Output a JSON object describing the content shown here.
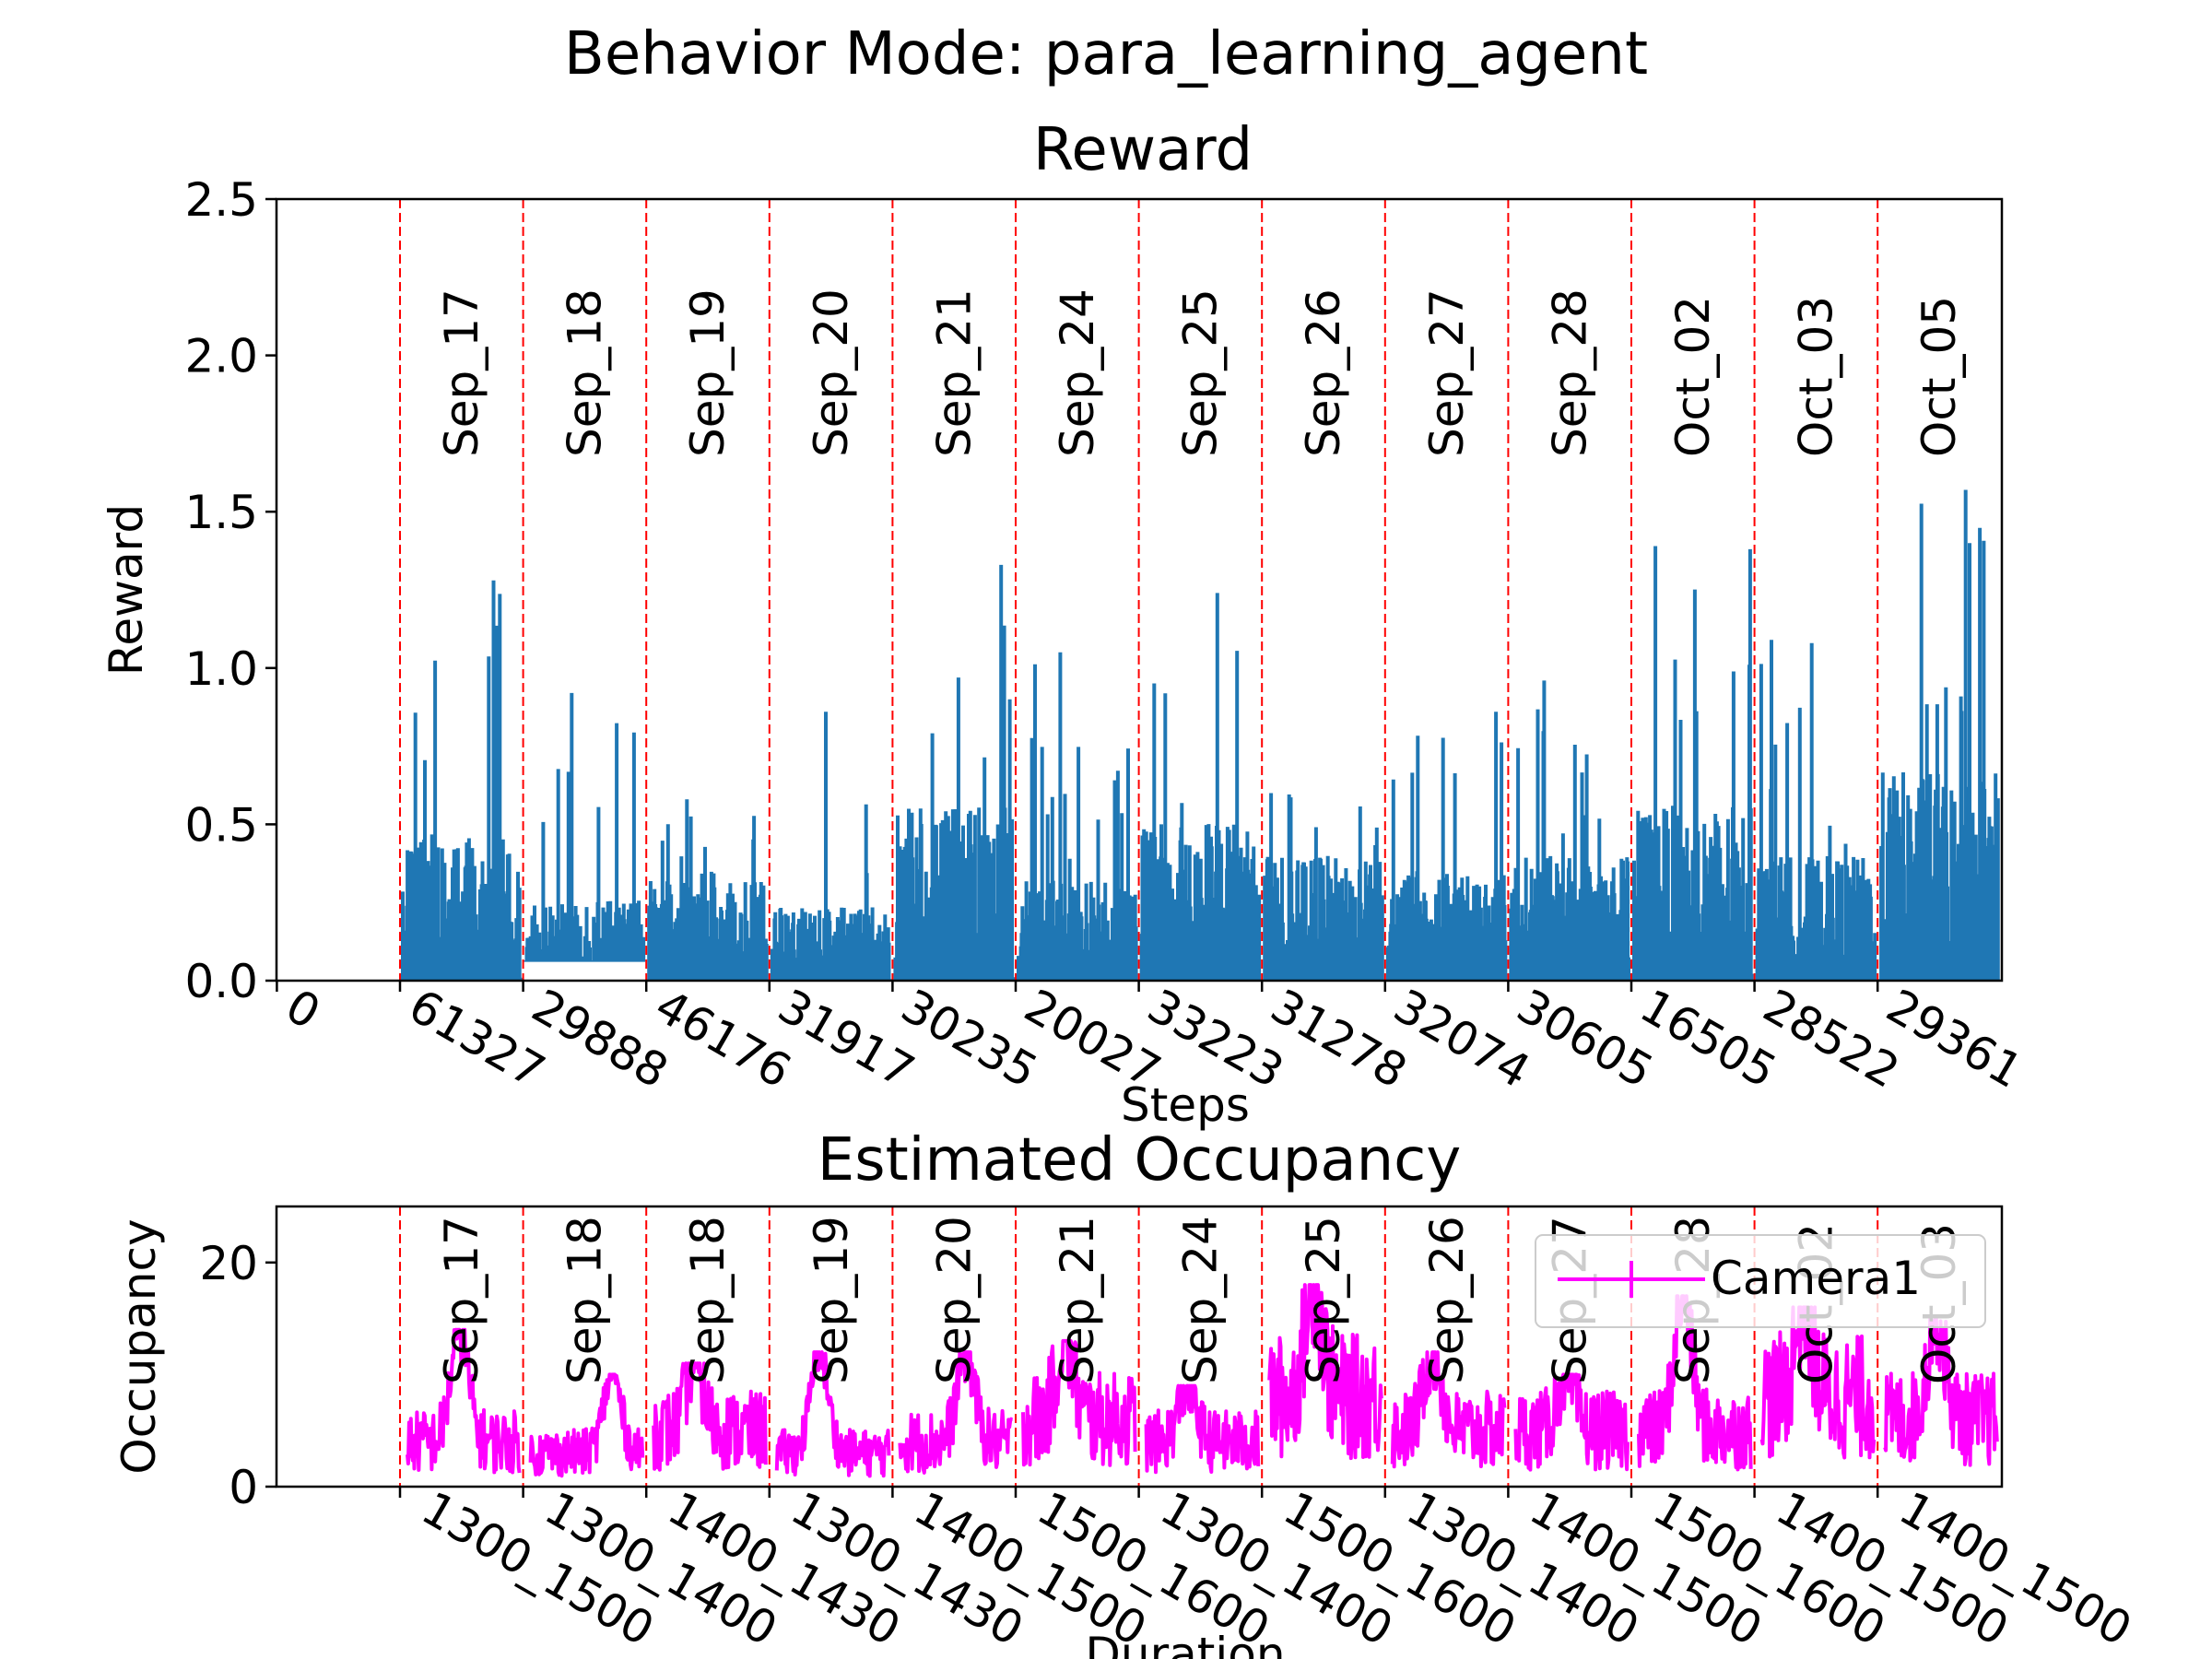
{
  "figure_title": "Behavior Mode: para_learning_agent",
  "colors": {
    "reward_series": "#1f77b4",
    "occupancy_series": "#ff00ff",
    "divider_lines": "#ff0000",
    "axes": "#000000"
  },
  "chart_data": [
    {
      "type": "bar",
      "title": "Reward",
      "xlabel": "Steps",
      "ylabel": "Reward",
      "ylim": [
        0,
        2.5
      ],
      "yticks": [
        "0.0",
        "0.5",
        "1.0",
        "1.5",
        "2.0",
        "2.5"
      ],
      "xticks": [
        "0",
        "61327",
        "29888",
        "46176",
        "31917",
        "30235",
        "20027",
        "33223",
        "31278",
        "32074",
        "30605",
        "16505",
        "28522",
        "29361"
      ],
      "segment_labels": [
        "Sep_17",
        "Sep_18",
        "Sep_19",
        "Sep_20",
        "Sep_21",
        "Sep_24",
        "Sep_25",
        "Sep_26",
        "Sep_27",
        "Sep_28",
        "Oct_02",
        "Oct_03",
        "Oct_05"
      ],
      "grid": false,
      "legend": null,
      "series": [
        {
          "segment_peaks": [
            1.28,
            0.92,
            0.58,
            0.86,
            1.33,
            1.05,
            1.24,
            0.6,
            0.86,
            0.96,
            1.39,
            1.09,
            1.57
          ],
          "segment_typical": [
            0.3,
            0.16,
            0.2,
            0.15,
            0.35,
            0.2,
            0.32,
            0.25,
            0.22,
            0.25,
            0.35,
            0.25,
            0.42
          ],
          "segment_floor": [
            0.0,
            0.06,
            0.0,
            0.0,
            0.0,
            0.0,
            0.0,
            0.0,
            0.0,
            0.0,
            0.0,
            0.0,
            0.0
          ]
        }
      ]
    },
    {
      "type": "line",
      "title": "Estimated Occupancy",
      "xlabel": "Duration",
      "ylabel": "Occupancy",
      "ylim": [
        0,
        25
      ],
      "yticks": [
        "0",
        "20"
      ],
      "xticks": [
        "1300_1500",
        "1300_1400",
        "1400_1430",
        "1300_1430",
        "1400_1500",
        "1500_1600",
        "1300_1400",
        "1500_1600",
        "1300_1400",
        "1400_1500",
        "1500_1600",
        "1400_1500",
        "1400_1500"
      ],
      "segment_labels": [
        "Sep_17",
        "Sep_18",
        "Sep_18",
        "Sep_19",
        "Sep_20",
        "Sep_21",
        "Sep_24",
        "Sep_25",
        "Sep_26",
        "Sep_27",
        "Sep_28",
        "Oct_02",
        "Oct_03"
      ],
      "grid": false,
      "legend": "top-right",
      "series": [
        {
          "name": "Camera1",
          "segment_peaks": [
            14,
            10,
            11,
            12,
            12,
            13,
            9,
            18,
            12,
            10,
            17,
            16,
            15
          ],
          "segment_typical": [
            4,
            3,
            5,
            3,
            4,
            6,
            4,
            8,
            5,
            5,
            5,
            8,
            6
          ]
        }
      ]
    }
  ]
}
